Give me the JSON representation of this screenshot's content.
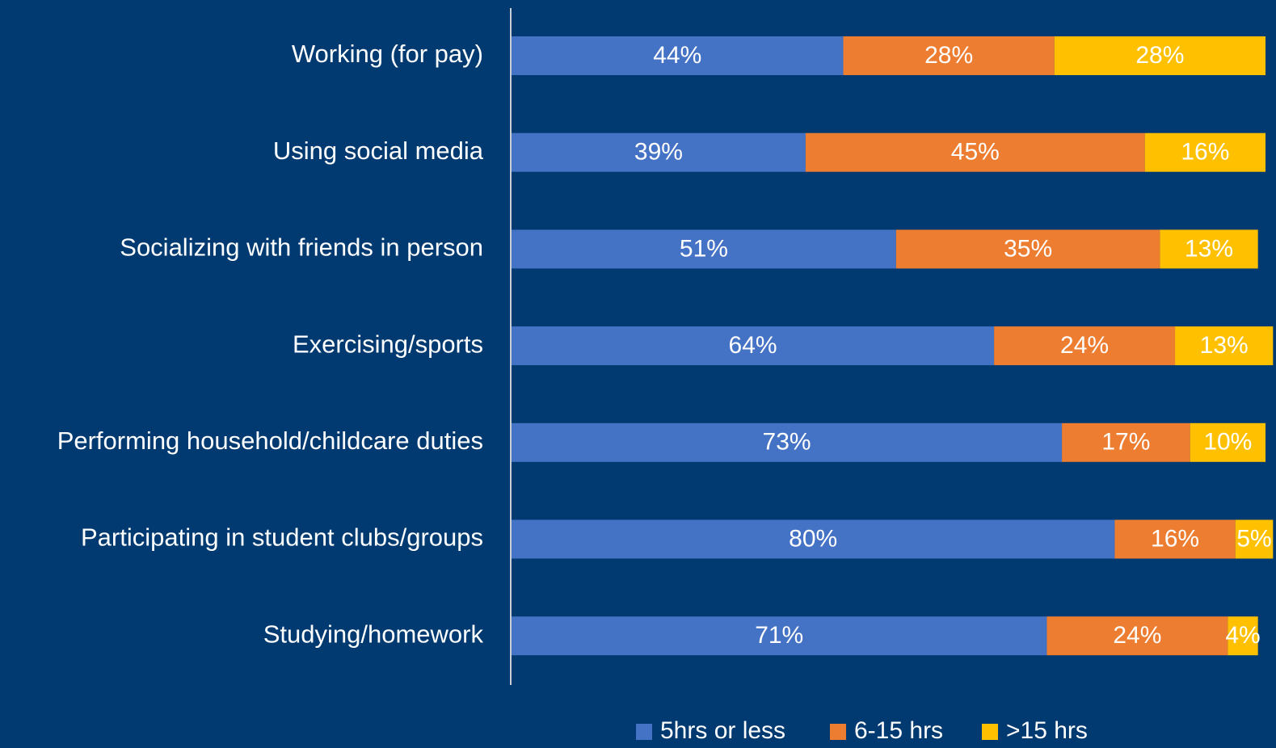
{
  "chart_data": {
    "type": "stacked-bar-horizontal",
    "categories": [
      "Working (for pay)",
      "Using social media",
      "Socializing with friends in person",
      "Exercising/sports",
      "Performing household/childcare duties",
      "Participating in student clubs/groups",
      "Studying/homework"
    ],
    "series": [
      {
        "name": "5hrs or less",
        "color": "#4472c4",
        "values": [
          44,
          39,
          51,
          64,
          73,
          80,
          71
        ],
        "value_labels": [
          "44%",
          "39%",
          "51%",
          "64%",
          "73%",
          "80%",
          "71%"
        ]
      },
      {
        "name": "6-15 hrs",
        "color": "#ed7d31",
        "values": [
          28,
          45,
          35,
          24,
          17,
          16,
          24
        ],
        "value_labels": [
          "28%",
          "45%",
          "35%",
          "24%",
          "17%",
          "16%",
          "24%"
        ]
      },
      {
        "name": ">15 hrs",
        "color": "#ffc000",
        "values": [
          28,
          16,
          13,
          13,
          10,
          5,
          4
        ],
        "value_labels": [
          "28%",
          "16%",
          "13%",
          "13%",
          "10%",
          "5%",
          "4%"
        ]
      }
    ],
    "xlim": [
      0,
      100
    ],
    "legend": "bottom"
  }
}
